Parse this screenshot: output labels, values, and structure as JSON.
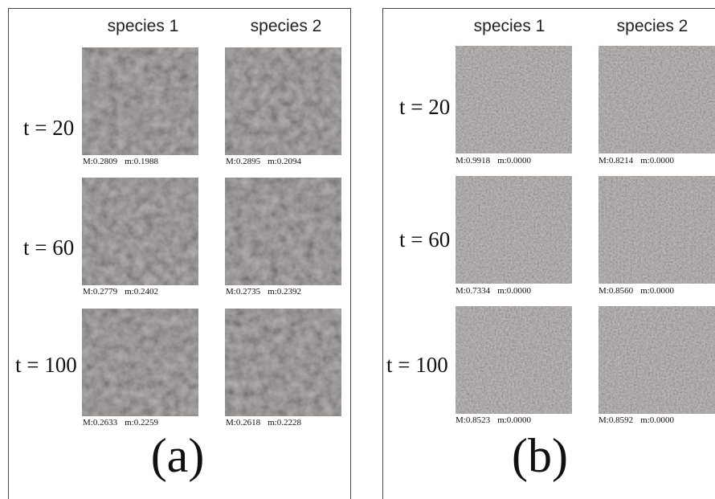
{
  "panels": [
    {
      "id": "a",
      "tag": "(a)",
      "species_headers": [
        "species 1",
        "species 2"
      ],
      "rows": [
        {
          "label": "t = 20",
          "stats": [
            [
              "M:0.2809",
              "m:0.1988"
            ],
            [
              "M:0.2895",
              "m:0.2094"
            ]
          ]
        },
        {
          "label": "t = 60",
          "stats": [
            [
              "M:0.2779",
              "m:0.2402"
            ],
            [
              "M:0.2735",
              "m:0.2392"
            ]
          ]
        },
        {
          "label": "t = 100",
          "stats": [
            [
              "M:0.2633",
              "m:0.2259"
            ],
            [
              "M:0.2618",
              "m:0.2228"
            ]
          ]
        }
      ]
    },
    {
      "id": "b",
      "tag": "(b)",
      "species_headers": [
        "species 1",
        "species 2"
      ],
      "rows": [
        {
          "label": "t = 20",
          "stats": [
            [
              "M:0.9918",
              "m:0.0000"
            ],
            [
              "M:0.8214",
              "m:0.0000"
            ]
          ]
        },
        {
          "label": "t = 60",
          "stats": [
            [
              "M:0.7334",
              "m:0.0000"
            ],
            [
              "M:0.8560",
              "m:0.0000"
            ]
          ]
        },
        {
          "label": "t = 100",
          "stats": [
            [
              "M:0.8523",
              "m:0.0000"
            ],
            [
              "M:0.8592",
              "m:0.0000"
            ]
          ]
        }
      ]
    }
  ],
  "colors": {
    "panel_a_tile_base": "#6f6767",
    "panel_b_tile_base": "#9a9090",
    "border": "#444444"
  }
}
